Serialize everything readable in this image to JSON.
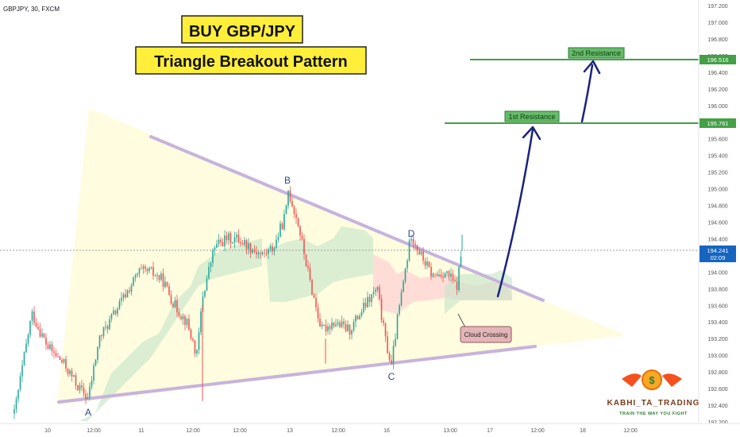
{
  "chart_data": {
    "type": "candlestick",
    "symbol_label": "GBPJPY, 30, FXCM",
    "title_line1": "BUY GBP/JPY",
    "title_line2": "Triangle Breakout Pattern",
    "ylim": [
      192.2,
      197.2
    ],
    "y_ticks": [
      "197.200",
      "197.000",
      "196.800",
      "196.600",
      "196.400",
      "196.200",
      "196.000",
      "195.800",
      "195.600",
      "195.400",
      "195.200",
      "195.000",
      "194.800",
      "194.600",
      "194.400",
      "194.200",
      "194.000",
      "193.800",
      "193.600",
      "193.400",
      "193.200",
      "193.000",
      "192.800",
      "192.600",
      "192.400",
      "192.200"
    ],
    "x_ticks": [
      "10",
      "12:00",
      "11",
      "12:00",
      "12:00",
      "13",
      "12:00",
      "16",
      "13:00",
      "17",
      "12:00",
      "18",
      "12:00"
    ],
    "current_price": "194.241",
    "current_countdown": "02:09",
    "resistance_levels": [
      {
        "label": "1st Resistance",
        "price": 195.761,
        "price_label": "195.761"
      },
      {
        "label": "2nd Resistance",
        "price": 196.516,
        "price_label": "196.516"
      }
    ],
    "pivot_points": [
      {
        "label": "A",
        "price": 192.48
      },
      {
        "label": "B",
        "price": 194.98
      },
      {
        "label": "C",
        "price": 192.86
      },
      {
        "label": "D",
        "price": 194.46
      }
    ],
    "annotation": "Cloud Crossing",
    "watermark_brand": "KABHI_TA_TRADING",
    "watermark_slogan": "TRAIN THE WAY YOU FIGHT",
    "colors": {
      "up": "#26a69a",
      "down": "#ef5350",
      "resistance": "#43a047",
      "arrow": "#1a237e",
      "title_bg": "#ffee3a",
      "triangle_fill": "#fff9c4",
      "cloud_green": "#c8e6c9",
      "cloud_red": "#ffcdd2"
    }
  }
}
